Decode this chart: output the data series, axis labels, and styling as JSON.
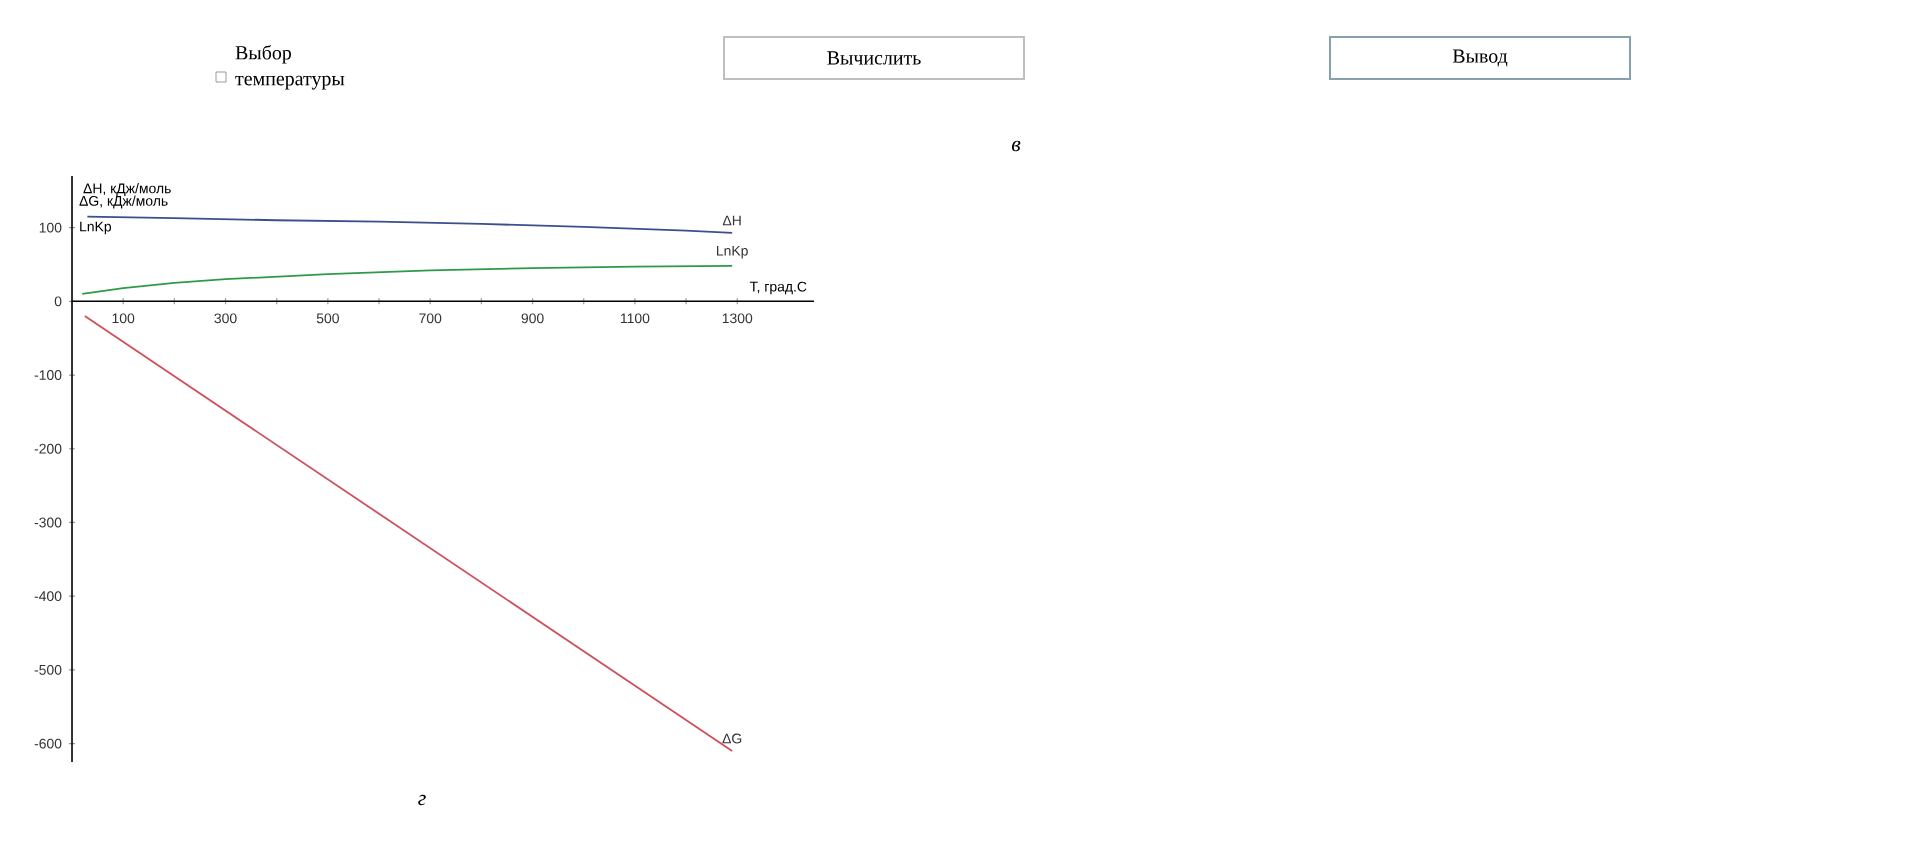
{
  "chart_data": {
    "type": "line",
    "ylabel": "ΔH, кДж/моль",
    "xlabel": "T, град.С",
    "xlim": [
      0,
      1450
    ],
    "ylim": [
      -625,
      170
    ],
    "xticks": [
      100,
      {
        "value": 200,
        "label": null
      },
      300,
      {
        "value": 400,
        "label": null
      },
      500,
      {
        "value": 600,
        "label": null
      },
      700,
      {
        "value": 800,
        "label": null
      },
      900,
      {
        "value": 1000,
        "label": null
      },
      1100,
      {
        "value": 1200,
        "label": null
      },
      1300
    ],
    "yticks": [
      -600,
      -500,
      -400,
      -300,
      -200,
      -100,
      0,
      100
    ],
    "marker": "none",
    "line_style": "solid",
    "series": [
      {
        "name": "ΔH",
        "color": "#3b4f8c",
        "x": [
          30,
          200,
          400,
          600,
          800,
          1000,
          1200,
          1290
        ],
        "values": [
          115,
          113,
          110,
          108,
          105,
          101,
          96,
          93
        ]
      },
      {
        "name": "LnKp",
        "color": "#2e9a48",
        "x": [
          20,
          100,
          200,
          300,
          500,
          700,
          900,
          1100,
          1290
        ],
        "values": [
          10,
          18,
          25,
          30,
          37,
          42,
          45,
          47,
          48
        ]
      },
      {
        "name": "ΔG",
        "color": "#d0505a",
        "x": [
          25,
          1290
        ],
        "values": [
          -20,
          -610
        ]
      }
    ],
    "annotations": [
      "ΔG, кДж/моль",
      "LnKp",
      "Выбор температуры",
      "Вычислить",
      "Вывод",
      "в",
      "г"
    ]
  }
}
